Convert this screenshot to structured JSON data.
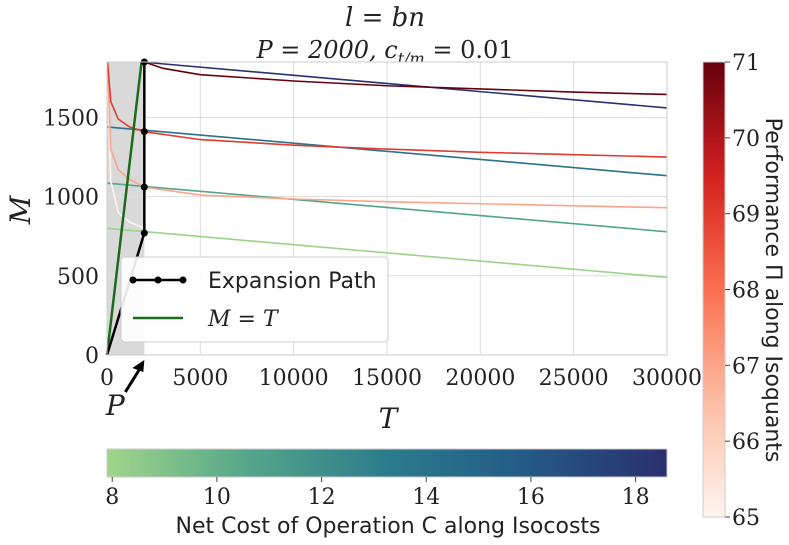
{
  "chart_data": {
    "type": "line",
    "title_line1": "l = bn",
    "title_line2": "P = 2000, c",
    "title_sub": "t/m",
    "title_tail": " = 0.01",
    "xlabel": "T",
    "ylabel": "M",
    "xlim": [
      0,
      30000
    ],
    "ylim": [
      0,
      1850
    ],
    "xticks": [
      0,
      5000,
      10000,
      15000,
      20000,
      25000,
      30000
    ],
    "yticks": [
      0,
      500,
      1000,
      1500
    ],
    "grid": true,
    "shaded_region": {
      "x": [
        0,
        2000
      ],
      "color": "#d9d9d9"
    },
    "p_marker": {
      "label": "P",
      "x": 2000
    },
    "legend": {
      "placement": "lower-left",
      "entries": [
        {
          "label": "Expansion Path",
          "color": "#000000",
          "marker": "dot"
        },
        {
          "label": "M = T",
          "color": "#1e6b1e"
        }
      ]
    },
    "identity_line": {
      "name": "M = T",
      "color": "#1e6b1e",
      "x": [
        0,
        1850
      ],
      "y": [
        0,
        1850
      ]
    },
    "expansion_path": {
      "name": "Expansion Path",
      "color": "#000000",
      "x": [
        0,
        2000,
        2000,
        2000,
        2000
      ],
      "y": [
        0,
        770,
        1060,
        1410,
        1850
      ]
    },
    "isoquants": {
      "colorbar_label": "Performance Π along Isoquants",
      "colorbar_ticks": [
        65,
        66,
        67,
        68,
        69,
        70,
        71
      ],
      "colormap": [
        "#fff5f0",
        "#fcbea5",
        "#fb7050",
        "#d32020",
        "#67000d"
      ],
      "series": [
        {
          "value": 65,
          "x": [
            30,
            200,
            600,
            1200,
            2000
          ],
          "y": [
            1850,
            1100,
            900,
            840,
            800
          ]
        },
        {
          "value": 67,
          "x": [
            30,
            200,
            600,
            1200,
            2000,
            5000,
            10000,
            15000,
            20000,
            25000,
            30000
          ],
          "y": [
            1850,
            1300,
            1170,
            1110,
            1060,
            1010,
            985,
            968,
            955,
            942,
            930
          ]
        },
        {
          "value": 69,
          "x": [
            30,
            200,
            600,
            1200,
            2000,
            5000,
            10000,
            15000,
            20000,
            25000,
            30000
          ],
          "y": [
            1850,
            1600,
            1490,
            1440,
            1410,
            1360,
            1325,
            1300,
            1280,
            1265,
            1250
          ]
        },
        {
          "value": 71,
          "x": [
            2000,
            3000,
            5000,
            10000,
            15000,
            20000,
            25000,
            30000
          ],
          "y": [
            1850,
            1810,
            1770,
            1730,
            1700,
            1680,
            1660,
            1645
          ]
        }
      ]
    },
    "isocosts": {
      "colorbar_label": "Net Cost of Operation C along Isocosts",
      "colorbar_range": [
        7.9,
        18.6
      ],
      "colorbar_ticks": [
        8,
        10,
        12,
        14,
        16,
        18
      ],
      "colormap": [
        "#9fd58a",
        "#55a68a",
        "#2b7c8c",
        "#245a86",
        "#2a2f6e"
      ],
      "series": [
        {
          "value": 8.0,
          "x": [
            0,
            30000
          ],
          "y": [
            800,
            490
          ]
        },
        {
          "value": 10.7,
          "x": [
            0,
            30000
          ],
          "y": [
            1085,
            778
          ]
        },
        {
          "value": 14.0,
          "x": [
            0,
            30000
          ],
          "y": [
            1440,
            1132
          ]
        },
        {
          "value": 18.5,
          "x": [
            1850,
            30000
          ],
          "y": [
            1850,
            1560
          ]
        }
      ]
    }
  }
}
